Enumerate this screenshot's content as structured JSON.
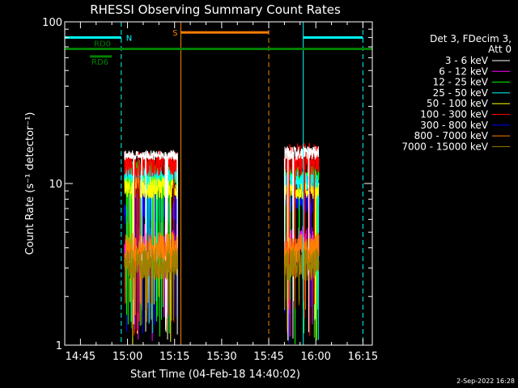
{
  "chart_data": {
    "type": "line",
    "title": "RHESSI Observing Summary Count Rates",
    "xlabel": "Start Time (04-Feb-18 14:40:02)",
    "ylabel": "Count Rate (s⁻¹ detector⁻¹)",
    "yscale": "log",
    "ylim": [
      1,
      100
    ],
    "xlim": [
      "14:40",
      "16:18"
    ],
    "x_ticks": [
      "14:45",
      "15:00",
      "15:15",
      "15:30",
      "15:45",
      "16:00",
      "16:15"
    ],
    "y_ticks": [
      "1",
      "10",
      "100"
    ],
    "timestamp": "2-Sep-2022 16:28",
    "legend_header": [
      "Det 3, FDecim 3,",
      "Att 0"
    ],
    "background": "#000000",
    "axis_color": "#ffffff",
    "series": [
      {
        "name": "3 - 6 keV",
        "color": "#ffffff",
        "segment1": {
          "x": [
            "14:59",
            "15:16"
          ],
          "y_range": [
            14,
            16
          ]
        },
        "segment2": {
          "x": [
            "15:50",
            "16:01"
          ],
          "y_range": [
            14,
            17
          ]
        }
      },
      {
        "name": "6 - 12 keV",
        "color": "#ff00ff",
        "segment1": {
          "x": [
            "14:59",
            "15:16"
          ],
          "y_range": [
            3,
            6
          ]
        },
        "segment2": {
          "x": [
            "15:50",
            "16:01"
          ],
          "y_range": [
            3,
            5.5
          ]
        }
      },
      {
        "name": "12 - 25 keV",
        "color": "#00ff00",
        "segment1": {
          "x": [
            "14:59",
            "15:16"
          ],
          "y_range": [
            9,
            14
          ]
        },
        "segment2": {
          "x": [
            "15:50",
            "16:01"
          ],
          "y_range": [
            9,
            13
          ]
        }
      },
      {
        "name": "25 - 50 keV",
        "color": "#00ffff",
        "segment1": {
          "x": [
            "14:59",
            "15:16"
          ],
          "y_range": [
            10,
            13
          ]
        },
        "segment2": {
          "x": [
            "15:50",
            "16:01"
          ],
          "y_range": [
            9,
            12
          ]
        }
      },
      {
        "name": "50 - 100 keV",
        "color": "#ffff00",
        "segment1": {
          "x": [
            "14:59",
            "15:16"
          ],
          "y_range": [
            8,
            11
          ]
        },
        "segment2": {
          "x": [
            "15:50",
            "16:01"
          ],
          "y_range": [
            8,
            10
          ]
        }
      },
      {
        "name": "100 - 300 keV",
        "color": "#ff0000",
        "segment1": {
          "x": [
            "14:59",
            "15:16"
          ],
          "y_range": [
            11,
            16
          ]
        },
        "segment2": {
          "x": [
            "15:50",
            "16:01"
          ],
          "y_range": [
            11,
            18
          ]
        }
      },
      {
        "name": "300 - 800 keV",
        "color": "#0000ff",
        "segment1": {
          "x": [
            "14:59",
            "15:16"
          ],
          "y_range": [
            5.5,
            9
          ]
        },
        "segment2": {
          "x": [
            "15:50",
            "16:01"
          ],
          "y_range": [
            6.5,
            10
          ]
        }
      },
      {
        "name": "800 - 7000 keV",
        "color": "#ff8000",
        "segment1": {
          "x": [
            "14:59",
            "15:16"
          ],
          "y_range": [
            3,
            5
          ]
        },
        "segment2": {
          "x": [
            "15:50",
            "16:01"
          ],
          "y_range": [
            3,
            5
          ]
        }
      },
      {
        "name": "7000 - 15000 keV",
        "color": "#a08000",
        "segment1": {
          "x": [
            "14:59",
            "15:16"
          ],
          "y_range": [
            2.5,
            4
          ]
        },
        "segment2": {
          "x": [
            "15:50",
            "16:01"
          ],
          "y_range": [
            2.5,
            4
          ]
        }
      }
    ],
    "annotations": {
      "flags": [
        {
          "label": "N",
          "color": "#00ffff",
          "bars": [
            {
              "x": [
                "14:40",
                "14:58"
              ],
              "y": 80
            },
            {
              "x": [
                "15:56",
                "16:15"
              ],
              "y": 80
            }
          ]
        },
        {
          "label": "RD0",
          "color": "#008000",
          "bars": [
            {
              "x": [
                "14:40",
                "16:18"
              ],
              "y": 68
            }
          ]
        },
        {
          "label": "RD6",
          "color": "#008000",
          "bars": [
            {
              "x": [
                "14:48",
                "14:55"
              ],
              "y": 61
            }
          ]
        },
        {
          "label": "S",
          "color": "#ff8000",
          "bars": [
            {
              "x": [
                "15:17",
                "15:45"
              ],
              "y": 86
            }
          ]
        }
      ],
      "vlines": [
        {
          "x": "14:40",
          "color": "#00ffff",
          "style": "solid"
        },
        {
          "x": "14:58",
          "color": "#00ffff",
          "style": "dashed"
        },
        {
          "x": "15:17",
          "color": "#ff8000",
          "style": "solid"
        },
        {
          "x": "15:45",
          "color": "#ff8000",
          "style": "dashed"
        },
        {
          "x": "15:56",
          "color": "#00ffff",
          "style": "solid"
        },
        {
          "x": "16:15",
          "color": "#00ffff",
          "style": "dashed"
        }
      ]
    }
  }
}
